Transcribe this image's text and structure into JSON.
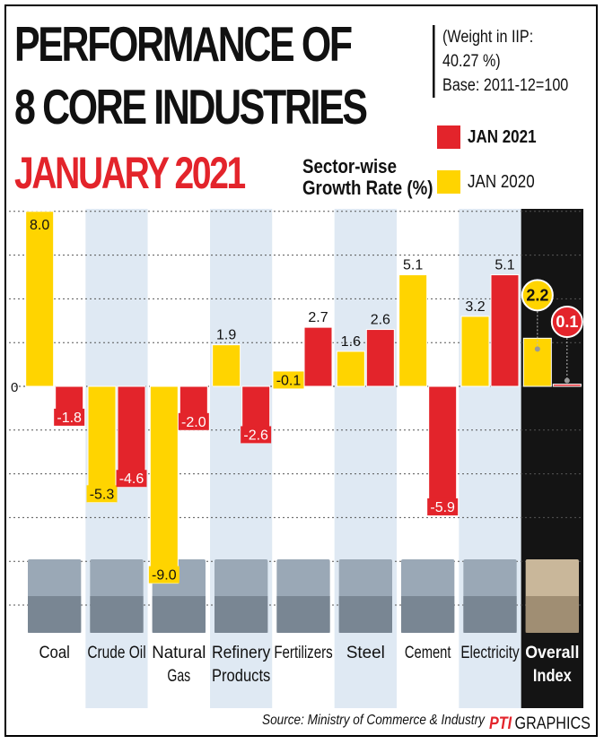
{
  "header": {
    "title_line1": "PERFORMANCE OF",
    "title_line2": "8 CORE INDUSTRIES",
    "title_line3": "JANUARY 2021",
    "weight_line1": "(Weight in IIP:",
    "weight_line2": "40.27 %)",
    "base": "Base: 2011-12=100",
    "subtitle_line1": "Sector-wise",
    "subtitle_line2": "Growth Rate (%)"
  },
  "legend": [
    {
      "label": "JAN 2021",
      "color": "#e3242b"
    },
    {
      "label": "JAN 2020",
      "color": "#ffd400"
    }
  ],
  "footer": {
    "source": "Source: Ministry of Commerce & Industry",
    "brand_pti": "PTI",
    "brand_graphics": "GRAPHICS"
  },
  "chart_data": {
    "type": "bar",
    "title": "PERFORMANCE OF 8 CORE INDUSTRIES JANUARY 2021",
    "ylabel": "Sector-wise Growth Rate (%)",
    "zero_label": "0",
    "categories": [
      [
        "Coal"
      ],
      [
        "Crude Oil"
      ],
      [
        "Natural",
        "Gas"
      ],
      [
        "Refinery",
        "Products"
      ],
      [
        "Fertilizers"
      ],
      [
        "Steel"
      ],
      [
        "Cement"
      ],
      [
        "Electricity"
      ],
      [
        "Overall",
        "Index"
      ]
    ],
    "series": [
      {
        "name": "JAN 2020",
        "color": "#ffd400",
        "values": [
          8.0,
          -5.3,
          -9.0,
          1.9,
          -0.1,
          1.6,
          5.1,
          3.2,
          2.2
        ]
      },
      {
        "name": "JAN 2021",
        "color": "#e3242b",
        "values": [
          -1.8,
          -4.6,
          -2.0,
          -2.6,
          2.7,
          2.6,
          -5.9,
          5.1,
          0.1
        ]
      }
    ],
    "value_labels": [
      [
        "8.0",
        "-5.3",
        "-9.0",
        "1.9",
        "-0.1",
        "1.6",
        "5.1",
        "3.2",
        "2.2"
      ],
      [
        "-1.8",
        "-4.6",
        "-2.0",
        "-2.6",
        "2.7",
        "2.6",
        "-5.9",
        "5.1",
        "0.1"
      ]
    ],
    "highlight_category_index": 8,
    "grid": true,
    "legend_position": "top-right"
  },
  "icons": [
    "coal-image",
    "crude-oil-image",
    "natural-gas-image",
    "refinery-image",
    "fertilizer-image",
    "steel-image",
    "cement-image",
    "electricity-image",
    "overall-index-image"
  ]
}
